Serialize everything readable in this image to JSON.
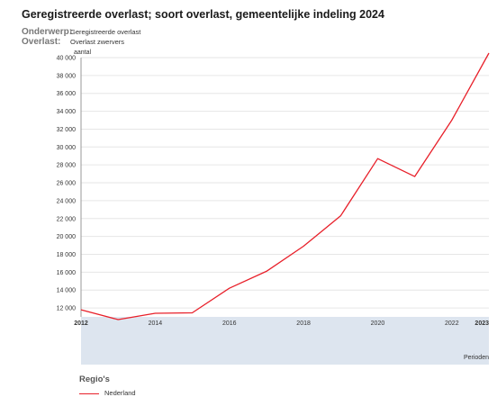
{
  "header": {
    "title": "Geregistreerde overlast; soort overlast, gemeentelijke indeling 2024",
    "subject_label": "Onderwerp:",
    "subject_value": "Geregistreerde overlast",
    "type_label": "Overlast:",
    "type_value": "Overlast zwervers"
  },
  "legend": {
    "title": "Regio's",
    "items": [
      "Nederland"
    ]
  },
  "colors": {
    "series": "#e8202a",
    "navigator": "#dde5ef",
    "grid": "#e6e6e6"
  },
  "chart_data": {
    "type": "line",
    "ylabel": "aantal",
    "xlabel": "Perioden",
    "ylim": [
      11000,
      40000
    ],
    "xlim": [
      2012,
      2023
    ],
    "y_ticks": [
      "12 000",
      "14 000",
      "16 000",
      "18 000",
      "20 000",
      "22 000",
      "24 000",
      "26 000",
      "28 000",
      "30 000",
      "32 000",
      "34 000",
      "36 000",
      "38 000",
      "40 000"
    ],
    "x_ticks": [
      "2012",
      "2014",
      "2016",
      "2018",
      "2020",
      "2022",
      "2023"
    ],
    "grid": true,
    "legend_position": "bottom-left",
    "series": [
      {
        "name": "Nederland",
        "x": [
          2012,
          2013,
          2014,
          2015,
          2016,
          2017,
          2018,
          2019,
          2020,
          2021,
          2022,
          2023
        ],
        "values": [
          11800,
          10700,
          11400,
          11450,
          14200,
          16100,
          18900,
          22300,
          28700,
          26700,
          33000,
          40500
        ]
      }
    ]
  }
}
